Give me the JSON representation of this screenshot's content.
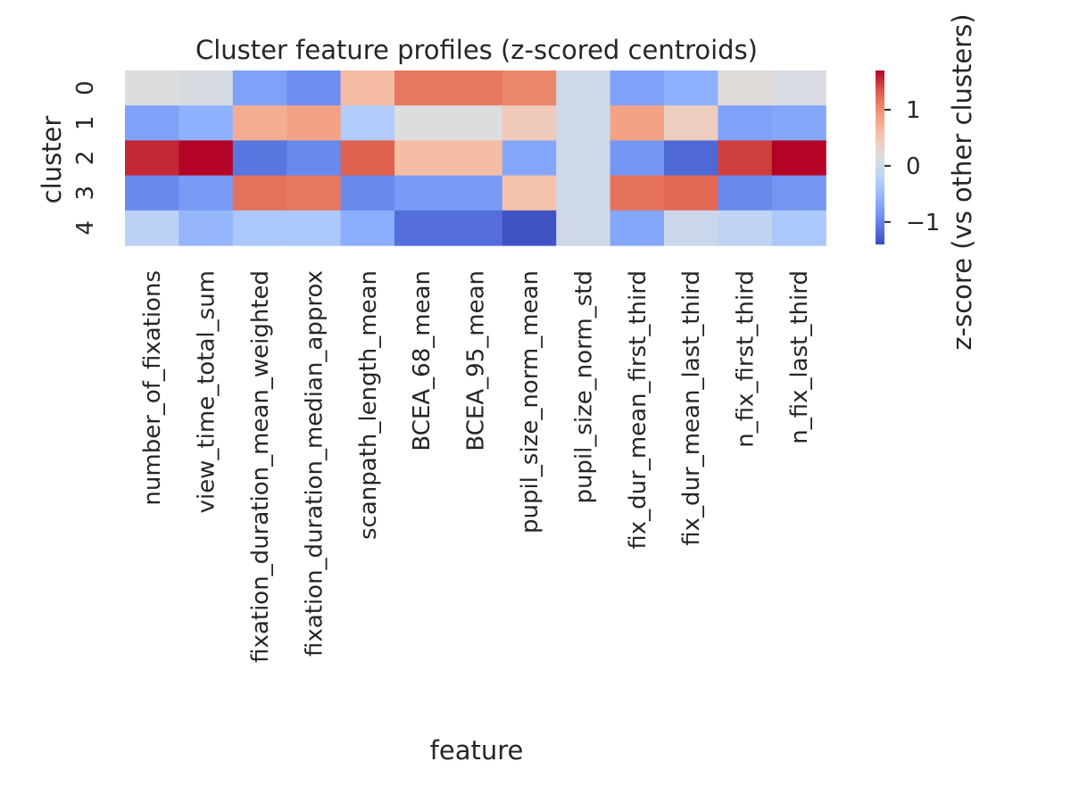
{
  "chart_data": {
    "type": "heatmap",
    "title": "Cluster feature profiles (z-scored centroids)",
    "xlabel": "feature",
    "ylabel": "cluster",
    "colorbar_label": "z-score (vs other clusters)",
    "colormap": "coolwarm",
    "vmin": -1.4,
    "vmax": 1.7,
    "colorbar_ticks": [
      -1,
      0,
      1
    ],
    "colorbar_tick_labels": [
      "−1",
      "0",
      "1"
    ],
    "columns": [
      "number_of_fixations",
      "view_time_total_sum",
      "fixation_duration_mean_weighted",
      "fixation_duration_median_approx",
      "scanpath_length_mean",
      "BCEA_68_mean",
      "BCEA_95_mean",
      "pupil_size_norm_mean",
      "pupil_size_norm_std",
      "fix_dur_mean_first_third",
      "fix_dur_mean_last_third",
      "n_fix_first_third",
      "n_fix_last_third"
    ],
    "rows": [
      "0",
      "1",
      "2",
      "3",
      "4"
    ],
    "values": [
      [
        0.15,
        0.07,
        -0.75,
        -0.9,
        0.6,
        1.15,
        1.15,
        1.05,
        0.0,
        -0.75,
        -0.62,
        0.2,
        0.1
      ],
      [
        -0.75,
        -0.6,
        0.75,
        0.85,
        -0.3,
        0.15,
        0.15,
        0.45,
        0.0,
        0.85,
        0.4,
        -0.75,
        -0.7
      ],
      [
        1.55,
        1.7,
        -1.1,
        -0.95,
        1.3,
        0.6,
        0.6,
        -0.7,
        0.0,
        -0.85,
        -1.2,
        1.45,
        1.7
      ],
      [
        -0.95,
        -0.8,
        1.2,
        1.15,
        -0.95,
        -0.8,
        -0.8,
        0.55,
        0.0,
        1.2,
        1.25,
        -0.95,
        -0.85
      ],
      [
        -0.2,
        -0.55,
        -0.35,
        -0.35,
        -0.65,
        -1.15,
        -1.15,
        -1.35,
        0.0,
        -0.7,
        -0.05,
        -0.15,
        -0.35
      ]
    ]
  }
}
